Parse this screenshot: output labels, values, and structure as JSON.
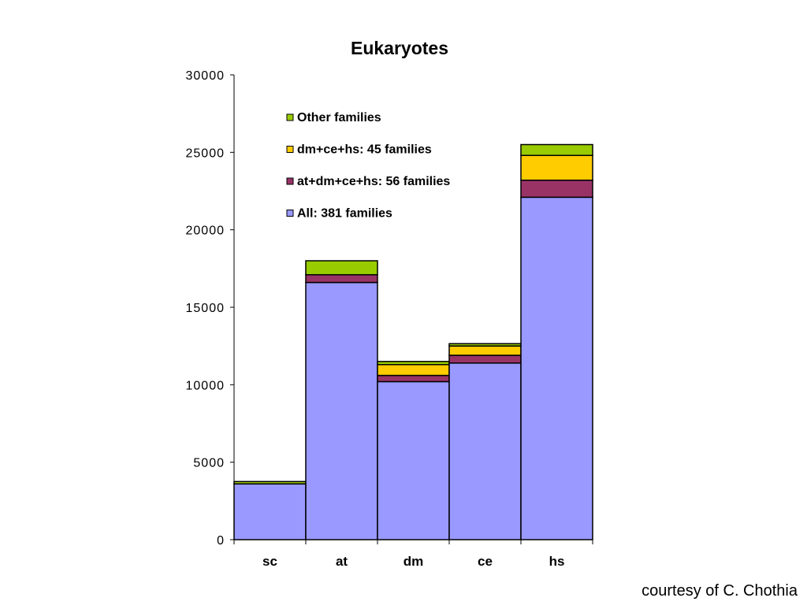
{
  "chart_data": {
    "type": "bar",
    "stacked": true,
    "title": "Eukaryotes",
    "xlabel": "",
    "ylabel": "",
    "categories": [
      "sc",
      "at",
      "dm",
      "ce",
      "hs"
    ],
    "ylim": [
      0,
      30000
    ],
    "yticks": [
      0,
      5000,
      10000,
      15000,
      20000,
      25000,
      30000
    ],
    "ytick_labels": [
      "0",
      "5000",
      "10000",
      "15000",
      "20000",
      "25000",
      "30000"
    ],
    "grid": false,
    "legend_position": "top-left inside",
    "series": [
      {
        "name": "All: 381 families",
        "color": "#9999ff",
        "values": [
          3600,
          16600,
          10200,
          11400,
          22100
        ]
      },
      {
        "name": "at+dm+ce+hs: 56 families",
        "color": "#993366",
        "values": [
          0,
          500,
          400,
          500,
          1100
        ]
      },
      {
        "name": "dm+ce+hs: 45 families",
        "color": "#ffcc00",
        "values": [
          0,
          0,
          700,
          600,
          1600
        ]
      },
      {
        "name": "Other families",
        "color": "#99cc00",
        "values": [
          150,
          900,
          200,
          150,
          700
        ]
      }
    ]
  },
  "footer": {
    "credit": "courtesy of C. Chothia"
  }
}
